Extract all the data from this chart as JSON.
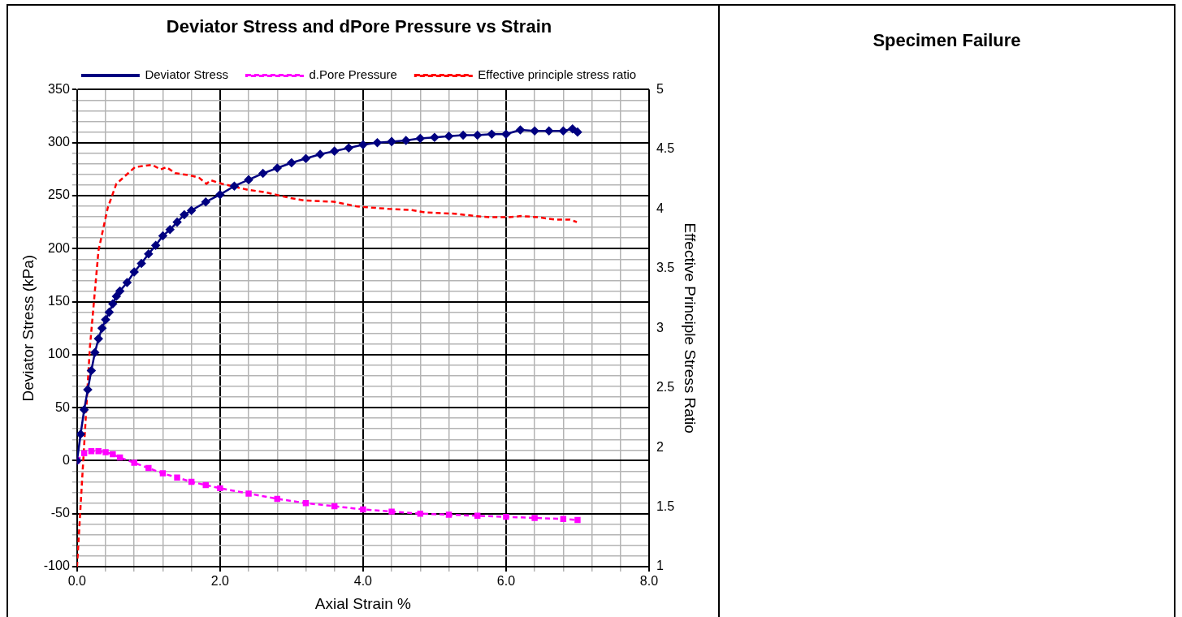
{
  "chart_data": [
    {
      "type": "line",
      "title": "Deviator Stress and dPore Pressure vs Strain",
      "xlabel": "Axial Strain %",
      "ylabel": "Deviator Stress (kPa)",
      "y2label": "Effective Principle Stress Ratio",
      "legend": "top",
      "grid": true,
      "xlim": [
        0,
        8
      ],
      "xticks": [
        {
          "value": 0,
          "label": "0.0"
        },
        {
          "value": 0.4,
          "label": null
        },
        {
          "value": 0.8,
          "label": null
        },
        {
          "value": 1.2,
          "label": null
        },
        {
          "value": 1.6,
          "label": null
        },
        {
          "value": 2,
          "label": "2.0"
        },
        {
          "value": 2.4,
          "label": null
        },
        {
          "value": 2.8,
          "label": null
        },
        {
          "value": 3.2,
          "label": null
        },
        {
          "value": 3.6,
          "label": null
        },
        {
          "value": 4,
          "label": "4.0"
        },
        {
          "value": 4.4,
          "label": null
        },
        {
          "value": 4.8,
          "label": null
        },
        {
          "value": 5.2,
          "label": null
        },
        {
          "value": 5.6,
          "label": null
        },
        {
          "value": 6,
          "label": "6.0"
        },
        {
          "value": 6.4,
          "label": null
        },
        {
          "value": 6.8,
          "label": null
        },
        {
          "value": 7.2,
          "label": null
        },
        {
          "value": 7.6,
          "label": null
        },
        {
          "value": 8,
          "label": "8.0"
        }
      ],
      "ylim": [
        -100,
        350
      ],
      "yticks": [
        -100,
        {
          "value": -90,
          "label": null
        },
        {
          "value": -80,
          "label": null
        },
        {
          "value": -70,
          "label": null
        },
        {
          "value": -60,
          "label": null
        },
        -50,
        {
          "value": -40,
          "label": null
        },
        {
          "value": -30,
          "label": null
        },
        {
          "value": -20,
          "label": null
        },
        {
          "value": -10,
          "label": null
        },
        0,
        {
          "value": 10,
          "label": null
        },
        {
          "value": 20,
          "label": null
        },
        {
          "value": 30,
          "label": null
        },
        {
          "value": 40,
          "label": null
        },
        50,
        {
          "value": 60,
          "label": null
        },
        {
          "value": 70,
          "label": null
        },
        {
          "value": 80,
          "label": null
        },
        {
          "value": 90,
          "label": null
        },
        100,
        {
          "value": 110,
          "label": null
        },
        {
          "value": 120,
          "label": null
        },
        {
          "value": 130,
          "label": null
        },
        {
          "value": 140,
          "label": null
        },
        150,
        {
          "value": 160,
          "label": null
        },
        {
          "value": 170,
          "label": null
        },
        {
          "value": 180,
          "label": null
        },
        {
          "value": 190,
          "label": null
        },
        200,
        {
          "value": 210,
          "label": null
        },
        {
          "value": 220,
          "label": null
        },
        {
          "value": 230,
          "label": null
        },
        {
          "value": 240,
          "label": null
        },
        250,
        {
          "value": 260,
          "label": null
        },
        {
          "value": 270,
          "label": null
        },
        {
          "value": 280,
          "label": null
        },
        {
          "value": 290,
          "label": null
        },
        300,
        {
          "value": 310,
          "label": null
        },
        {
          "value": 320,
          "label": null
        },
        {
          "value": 330,
          "label": null
        },
        {
          "value": 340,
          "label": null
        },
        350
      ],
      "y2lim": [
        1,
        5
      ],
      "y2ticks": [
        1,
        1.5,
        2,
        2.5,
        3,
        3.5,
        4,
        4.5,
        5
      ],
      "series": [
        {
          "name": "Deviator Stress",
          "color": "#000080",
          "marker": "diamond",
          "line_style": "solid",
          "x": [
            0,
            0.05,
            0.1,
            0.15,
            0.2,
            0.25,
            0.3,
            0.35,
            0.4,
            0.45,
            0.5,
            0.55,
            0.6,
            0.7,
            0.8,
            0.9,
            1.0,
            1.1,
            1.2,
            1.3,
            1.4,
            1.5,
            1.6,
            1.8,
            2.0,
            2.2,
            2.4,
            2.6,
            2.8,
            3.0,
            3.2,
            3.4,
            3.6,
            3.8,
            4.0,
            4.2,
            4.4,
            4.6,
            4.8,
            5.0,
            5.2,
            5.4,
            5.6,
            5.8,
            6.0,
            6.2,
            6.4,
            6.6,
            6.8,
            6.93,
            7.0
          ],
          "values": [
            0,
            25,
            48,
            67,
            85,
            102,
            115,
            125,
            133,
            140,
            148,
            155,
            160,
            168,
            178,
            186,
            195,
            203,
            212,
            218,
            225,
            232,
            236,
            244,
            251,
            259,
            265,
            271,
            276,
            281,
            285,
            289,
            292,
            295,
            298,
            300,
            301,
            302,
            304,
            305,
            306,
            307,
            307,
            308,
            308,
            312,
            311,
            311,
            311,
            313,
            310
          ]
        },
        {
          "name": "d.Pore Pressure",
          "color": "#ff00ff",
          "marker": "square",
          "line_style": "dashed",
          "x": [
            0,
            0.1,
            0.2,
            0.3,
            0.4,
            0.5,
            0.6,
            0.8,
            1.0,
            1.2,
            1.4,
            1.6,
            1.8,
            2.0,
            2.4,
            2.8,
            3.2,
            3.6,
            4.0,
            4.4,
            4.8,
            5.2,
            5.6,
            6.0,
            6.4,
            6.8,
            7.0
          ],
          "values": [
            0,
            7,
            9,
            9,
            8,
            6,
            3,
            -2,
            -7,
            -12,
            -16,
            -20,
            -23,
            -26,
            -31,
            -36,
            -40,
            -43,
            -46,
            -48,
            -50,
            -51,
            -52,
            -53,
            -54,
            -55,
            -56
          ]
        },
        {
          "name": "Effective principle stress ratio",
          "color": "#ff0000",
          "marker": "none",
          "line_style": "dashed",
          "axis": "y2",
          "x": [
            0,
            0.18,
            0.3,
            0.43,
            0.55,
            0.81,
            1.05,
            1.17,
            1.25,
            1.37,
            1.59,
            1.71,
            1.81,
            1.87,
            2.03,
            2.39,
            2.63,
            2.99,
            3.19,
            3.59,
            3.92,
            4.36,
            4.68,
            4.88,
            5.28,
            5.57,
            5.77,
            6.05,
            6.21,
            6.45,
            6.69,
            6.89,
            6.99
          ],
          "values": [
            1,
            2.84,
            3.65,
            4.01,
            4.21,
            4.35,
            4.37,
            4.33,
            4.35,
            4.3,
            4.28,
            4.26,
            4.21,
            4.24,
            4.21,
            4.16,
            4.14,
            4.09,
            4.07,
            4.06,
            4.02,
            4.0,
            3.99,
            3.97,
            3.96,
            3.94,
            3.93,
            3.93,
            3.94,
            3.93,
            3.91,
            3.91,
            3.89
          ]
        }
      ]
    },
    {
      "type": "other",
      "title": "Specimen Failure"
    }
  ]
}
